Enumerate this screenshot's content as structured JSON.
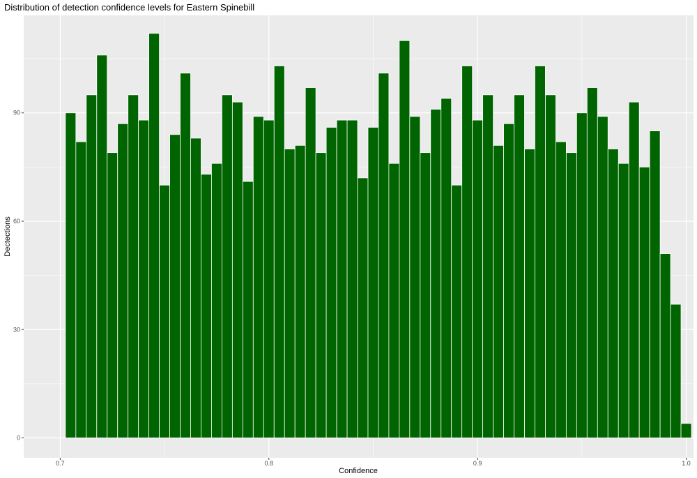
{
  "chart_data": {
    "type": "bar",
    "title": "Distribution of detection confidence levels for Eastern Spinebill",
    "xlabel": "Confidence",
    "ylabel": "Dectections",
    "xlim": [
      0.6825,
      1.0035
    ],
    "ylim": [
      -5.5,
      117
    ],
    "x_ticks": [
      {
        "value": 0.7,
        "label": "0.7"
      },
      {
        "value": 0.8,
        "label": "0.8"
      },
      {
        "value": 0.9,
        "label": "0.9"
      },
      {
        "value": 1.0,
        "label": "1.0"
      }
    ],
    "y_ticks": [
      {
        "value": 0,
        "label": "0"
      },
      {
        "value": 30,
        "label": "30"
      },
      {
        "value": 60,
        "label": "60"
      },
      {
        "value": 90,
        "label": "90"
      }
    ],
    "bin_width": 0.005,
    "bin_start": 0.7025,
    "grid": true,
    "legend": "none",
    "bar_color": "#006400",
    "bar_outline": "#ffffff",
    "panel_background": "#ebebeb",
    "grid_color": "#ffffff",
    "values": [
      90,
      82,
      95,
      106,
      79,
      87,
      95,
      88,
      112,
      70,
      84,
      101,
      83,
      73,
      76,
      95,
      93,
      71,
      89,
      88,
      103,
      80,
      81,
      97,
      79,
      86,
      88,
      88,
      72,
      86,
      101,
      76,
      110,
      89,
      79,
      91,
      94,
      70,
      103,
      88,
      95,
      81,
      87,
      95,
      80,
      103,
      95,
      82,
      79,
      90,
      97,
      89,
      80,
      76,
      93,
      75,
      85,
      51,
      37,
      4
    ]
  }
}
